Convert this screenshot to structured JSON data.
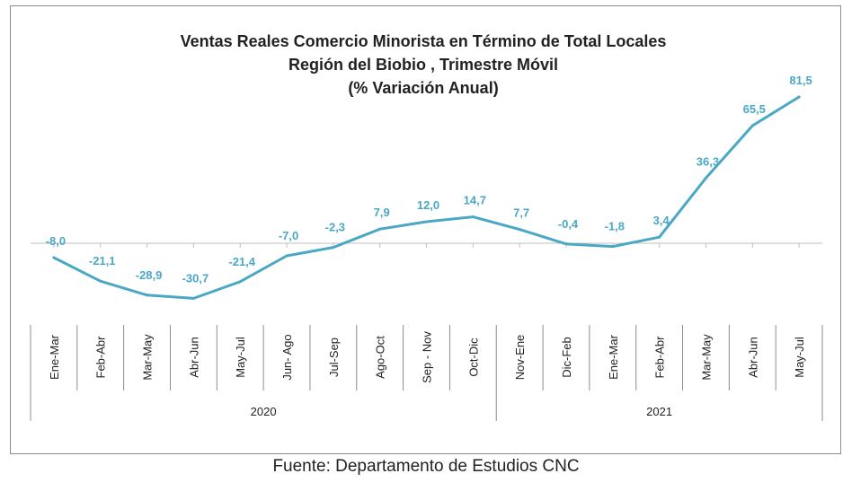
{
  "chart_data": {
    "type": "line",
    "title_lines": [
      "Ventas Reales Comercio Minorista  en Término de Total Locales",
      "Región del Biobio , Trimestre Móvil",
      "(% Variación Anual)"
    ],
    "categories": [
      "Ene-Mar",
      "Feb-Abr",
      "Mar-May",
      "Abr-Jun",
      "May-Jul",
      "Jun- Ago",
      "Jul-Sep",
      "Ago-Oct",
      "Sep - Nov",
      "Oct-Dic",
      "Nov-Ene",
      "Dic-Feb",
      "Ene-Mar",
      "Feb-Abr",
      "Mar-May",
      "Abr-Jun",
      "May-Jul"
    ],
    "values": [
      -8.0,
      -21.1,
      -28.9,
      -30.7,
      -21.4,
      -7.0,
      -2.3,
      7.9,
      12.0,
      14.7,
      7.7,
      -0.4,
      -1.8,
      3.4,
      36.3,
      65.5,
      81.5
    ],
    "value_labels": [
      "-8,0",
      "-21,1",
      "-28,9",
      "-30,7",
      "-21,4",
      "-7,0",
      "-2,3",
      "7,9",
      "12,0",
      "14,7",
      "7,7",
      "-0,4",
      "-1,8",
      "3,4",
      "36,3",
      "65,5",
      "81,5"
    ],
    "groups": [
      {
        "label": "2020",
        "count": 10
      },
      {
        "label": "2021",
        "count": 7
      }
    ],
    "series_color": "#4aa8c5",
    "grid": false,
    "legend": "none"
  },
  "source": "Fuente: Departamento de Estudios CNC"
}
